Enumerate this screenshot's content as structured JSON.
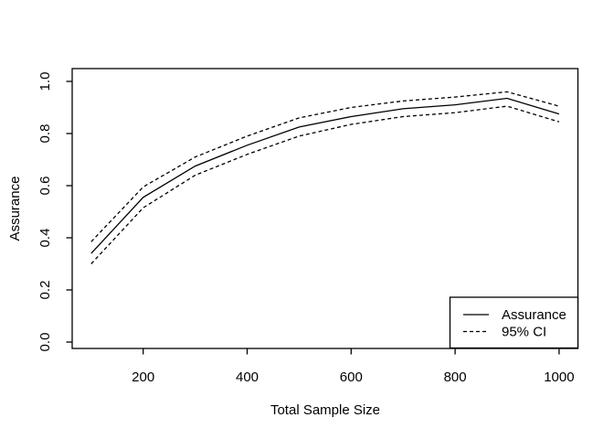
{
  "window": {
    "background_color": "#ffffff",
    "foreground_color": "#000000"
  },
  "chart_data": {
    "type": "line",
    "title": "",
    "xlabel": "Total Sample Size",
    "ylabel": "Assurance",
    "x": [
      100,
      200,
      300,
      400,
      500,
      600,
      700,
      800,
      900,
      1000
    ],
    "series": [
      {
        "name": "Assurance",
        "line_style": "solid",
        "color": "#000000",
        "values": [
          0.34,
          0.555,
          0.675,
          0.755,
          0.825,
          0.865,
          0.895,
          0.91,
          0.935,
          0.875
        ]
      },
      {
        "name": "95% CI upper",
        "line_style": "dashed",
        "color": "#000000",
        "values": [
          0.385,
          0.595,
          0.71,
          0.79,
          0.86,
          0.9,
          0.925,
          0.94,
          0.96,
          0.905
        ]
      },
      {
        "name": "95% CI lower",
        "line_style": "dashed",
        "color": "#000000",
        "values": [
          0.3,
          0.515,
          0.64,
          0.72,
          0.79,
          0.835,
          0.865,
          0.88,
          0.905,
          0.845
        ]
      }
    ],
    "x_ticks": [
      200,
      400,
      600,
      800,
      1000
    ],
    "y_ticks": [
      0.0,
      0.2,
      0.4,
      0.6,
      0.8,
      1.0
    ],
    "y_tick_labels": [
      "0.0",
      "0.2",
      "0.4",
      "0.6",
      "0.8",
      "1.0"
    ],
    "xlim": [
      100,
      1000
    ],
    "ylim": [
      0.0,
      1.0
    ],
    "grid": false,
    "legend": {
      "position": "bottom-right",
      "entries": [
        {
          "label": "Assurance",
          "line_style": "solid"
        },
        {
          "label": "95% CI",
          "line_style": "dashed"
        }
      ]
    }
  }
}
